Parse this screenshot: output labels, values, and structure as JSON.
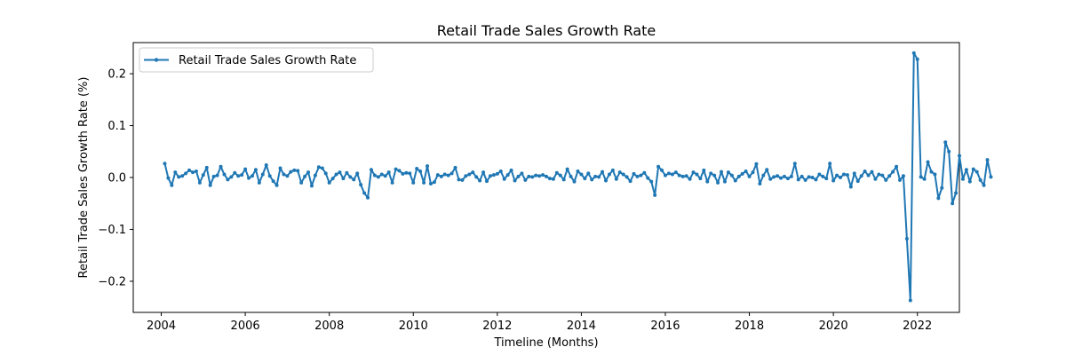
{
  "chart_data": {
    "type": "line",
    "title": "Retail Trade Sales Growth Rate",
    "xlabel": "Timeline (Months)",
    "ylabel": "Retail Trade Sales Growth Rate (%)",
    "xlim": [
      "2003-05",
      "2023-01"
    ],
    "ylim": [
      -0.26,
      0.26
    ],
    "x_ticks": [
      "2004",
      "2006",
      "2008",
      "2010",
      "2012",
      "2014",
      "2016",
      "2018",
      "2020",
      "2022"
    ],
    "y_ticks": [
      -0.2,
      -0.1,
      0.0,
      0.1,
      0.2
    ],
    "y_tick_labels": [
      "−0.2",
      "−0.1",
      "0.0",
      "0.1",
      "0.2"
    ],
    "legend_position": "top-left",
    "grid": false,
    "color": "#1f77b4",
    "series": [
      {
        "name": "Retail Trade Sales Growth Rate",
        "start": "2004-02",
        "frequency": "monthly",
        "values": [
          0.027,
          -0.001,
          -0.015,
          0.01,
          0.001,
          0.003,
          0.008,
          0.014,
          0.01,
          0.012,
          -0.01,
          0.005,
          0.019,
          -0.015,
          0.002,
          0.004,
          0.021,
          0.006,
          -0.004,
          0.001,
          0.009,
          0.003,
          0.005,
          0.016,
          -0.001,
          0.003,
          0.015,
          -0.01,
          0.006,
          0.024,
          0.003,
          -0.007,
          -0.015,
          0.018,
          0.006,
          0.003,
          0.011,
          0.014,
          0.013,
          -0.01,
          0.002,
          0.01,
          -0.016,
          0.004,
          0.02,
          0.018,
          0.008,
          -0.01,
          -0.002,
          0.006,
          0.01,
          -0.002,
          0.009,
          0.001,
          -0.004,
          0.008,
          -0.014,
          -0.03,
          -0.039,
          0.015,
          0.004,
          0.001,
          0.006,
          0.003,
          0.01,
          -0.01,
          0.016,
          0.013,
          0.007,
          0.009,
          0.008,
          -0.01,
          0.017,
          0.012,
          -0.01,
          0.022,
          -0.012,
          -0.009,
          0.005,
          0.002,
          0.006,
          0.004,
          0.008,
          0.019,
          -0.004,
          -0.005,
          0.003,
          0.006,
          0.01,
          0.001,
          -0.006,
          0.01,
          -0.007,
          0.003,
          0.005,
          0.007,
          0.012,
          -0.003,
          0.005,
          0.014,
          -0.006,
          0.002,
          0.008,
          -0.005,
          0.002,
          0.001,
          0.004,
          0.003,
          0.005,
          0.002,
          -0.002,
          -0.003,
          0.009,
          0.004,
          -0.004,
          0.016,
          0.002,
          -0.008,
          0.012,
          0.006,
          -0.002,
          0.008,
          -0.004,
          0.002,
          0.001,
          0.011,
          -0.006,
          0.006,
          0.014,
          -0.003,
          0.01,
          0.006,
          0.001,
          -0.007,
          0.007,
          0.002,
          0.004,
          0.009,
          -0.001,
          -0.008,
          -0.034,
          0.021,
          0.014,
          0.004,
          0.008,
          0.006,
          0.01,
          0.004,
          0.002,
          0.003,
          -0.003,
          0.01,
          0.006,
          -0.002,
          0.014,
          -0.008,
          0.008,
          0.004,
          -0.01,
          0.011,
          -0.008,
          0.01,
          0.004,
          -0.006,
          0.002,
          0.007,
          0.012,
          0.002,
          0.01,
          0.026,
          -0.012,
          0.004,
          0.015,
          -0.003,
          0.001,
          0.003,
          -0.001,
          0.002,
          -0.002,
          0.002,
          0.027,
          -0.004,
          0.002,
          -0.005,
          0.001,
          0.0,
          -0.004,
          0.006,
          0.002,
          -0.002,
          0.027,
          -0.006,
          0.004,
          0.0,
          0.006,
          0.005,
          -0.018,
          0.008,
          -0.007,
          0.003,
          0.012,
          0.004,
          0.011,
          -0.003,
          0.006,
          0.004,
          -0.005,
          0.003,
          0.011,
          0.021,
          -0.005,
          0.003,
          -0.118,
          -0.237,
          0.24,
          0.228,
          0.001,
          -0.003,
          0.03,
          0.011,
          0.006,
          -0.04,
          -0.02,
          0.068,
          0.05,
          -0.05,
          -0.03,
          0.042,
          -0.003,
          0.015,
          -0.008,
          0.016,
          0.011,
          -0.005,
          -0.015,
          0.034,
          0.001
        ]
      }
    ]
  }
}
